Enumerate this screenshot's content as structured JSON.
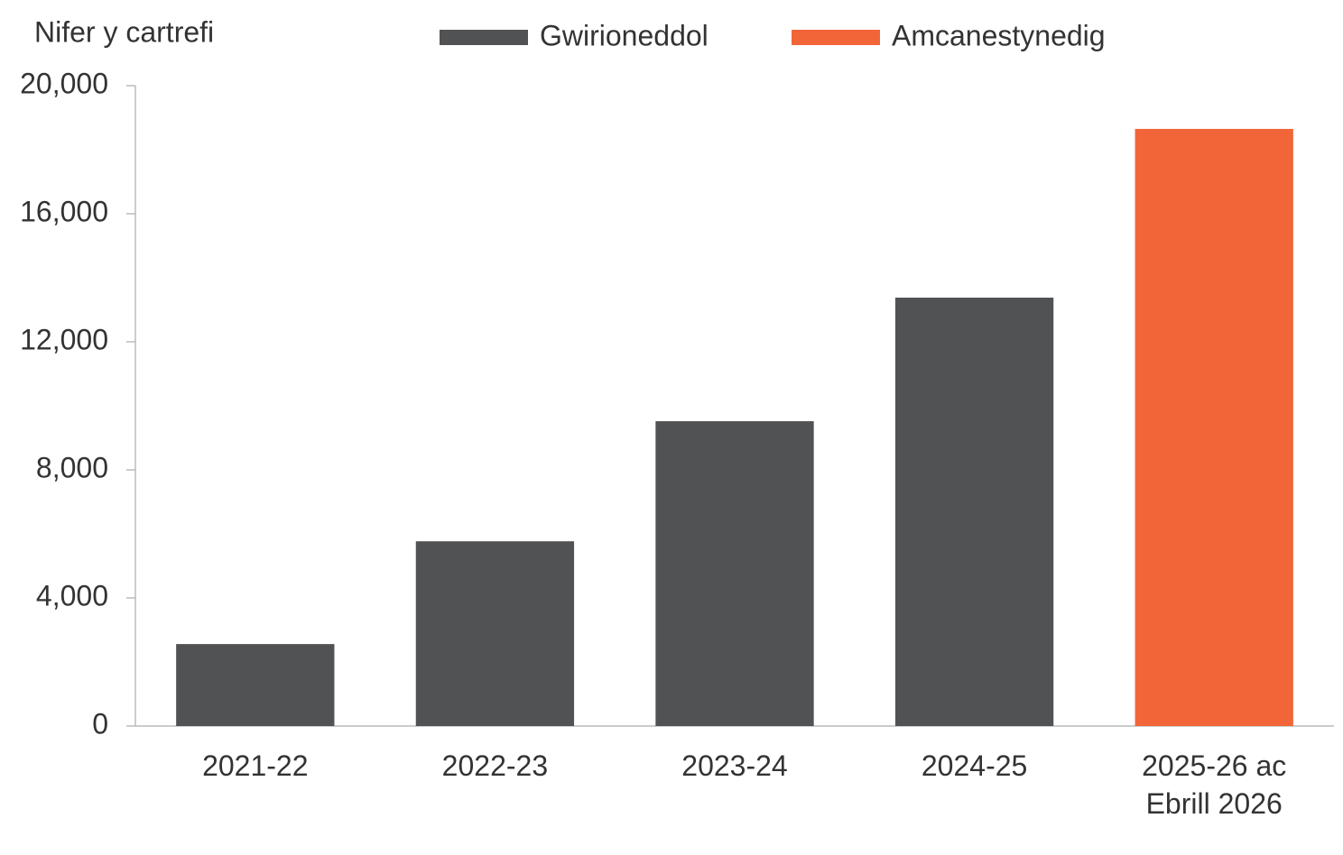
{
  "chart_data": {
    "type": "bar",
    "y_label": "Nifer y cartrefi",
    "categories": [
      "2021-22",
      "2022-23",
      "2023-24",
      "2024-25",
      "2025-26 ac Ebrill 2026"
    ],
    "series": [
      {
        "name": "Gwirioneddol",
        "color": "#515254",
        "values": [
          2560,
          5770,
          9520,
          13380,
          null
        ]
      },
      {
        "name": "Amcanestynedig",
        "color": "#f26539",
        "values": [
          null,
          null,
          null,
          null,
          18650
        ]
      }
    ],
    "ylim": [
      0,
      20000
    ],
    "yticks": [
      0,
      {
        "value": 4000,
        "label": "4,000"
      },
      {
        "value": 8000,
        "label": "8,000"
      },
      {
        "value": 12000,
        "label": "12,000"
      },
      {
        "value": 16000,
        "label": "16,000"
      },
      {
        "value": 20000,
        "label": "20,000"
      }
    ]
  }
}
